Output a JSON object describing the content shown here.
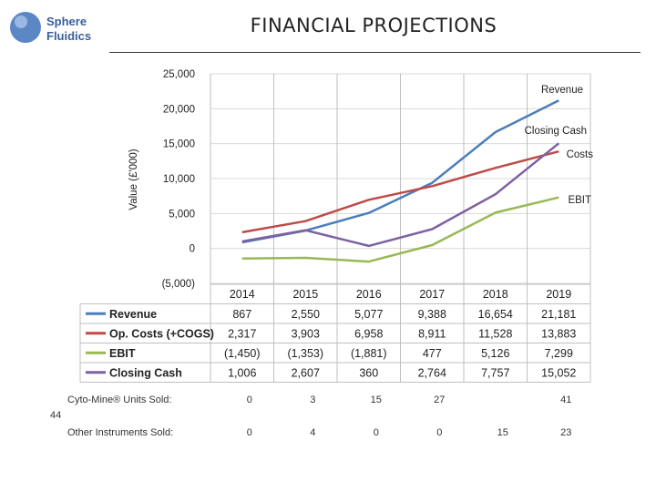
{
  "logo": {
    "line1": "Sphere",
    "line2": "Fluidics"
  },
  "title": "FINANCIAL PROJECTIONS",
  "slide_number": "44",
  "colors": {
    "revenue": "#4a7ebb",
    "costs": "#be4b48",
    "ebit": "#98b954",
    "closing_cash": "#7d60a0",
    "grid": "#d9d9d9",
    "table_border": "#bfbfbf"
  },
  "chart_data": {
    "type": "line",
    "ylabel": "Value (£'000)",
    "ylim": [
      -5000,
      25000
    ],
    "y_ticks": [
      25000,
      20000,
      15000,
      10000,
      5000,
      0,
      -5000
    ],
    "y_tick_labels": [
      "25,000",
      "20,000",
      "15,000",
      "10,000",
      "5,000",
      "0",
      "(5,000)"
    ],
    "categories": [
      "2014",
      "2015",
      "2016",
      "2017",
      "2018",
      "2019"
    ],
    "series": [
      {
        "name": "Revenue",
        "color": "#4a7ebb",
        "values": [
          867,
          2550,
          5077,
          9388,
          16654,
          21181
        ],
        "labels": [
          "867",
          "2,550",
          "5,077",
          "9,388",
          "16,654",
          "21,181"
        ]
      },
      {
        "name": "Op. Costs (+COGS)",
        "color": "#be4b48",
        "values": [
          2317,
          3903,
          6958,
          8911,
          11528,
          13883
        ],
        "labels": [
          "2,317",
          "3,903",
          "6,958",
          "8,911",
          "11,528",
          "13,883"
        ]
      },
      {
        "name": "EBIT",
        "color": "#98b954",
        "values": [
          -1450,
          -1353,
          -1881,
          477,
          5126,
          7299
        ],
        "labels": [
          "(1,450)",
          "(1,353)",
          "(1,881)",
          "477",
          "5,126",
          "7,299"
        ]
      },
      {
        "name": "Closing Cash",
        "color": "#7d60a0",
        "values": [
          1006,
          2607,
          360,
          2764,
          7757,
          15052
        ],
        "labels": [
          "1,006",
          "2,607",
          "360",
          "2,764",
          "7,757",
          "15,052"
        ]
      }
    ],
    "annotations": [
      "Revenue",
      "Closing Cash",
      "Costs",
      "EBIT"
    ],
    "grid": true
  },
  "units": {
    "rows": [
      {
        "label": "Cyto-Mine® Units Sold:",
        "values": [
          "0",
          "3",
          "15",
          "27",
          "",
          "41"
        ]
      },
      {
        "label": "Other Instruments Sold:",
        "values": [
          "0",
          "4",
          "0",
          "0",
          "15",
          "23"
        ]
      }
    ]
  }
}
